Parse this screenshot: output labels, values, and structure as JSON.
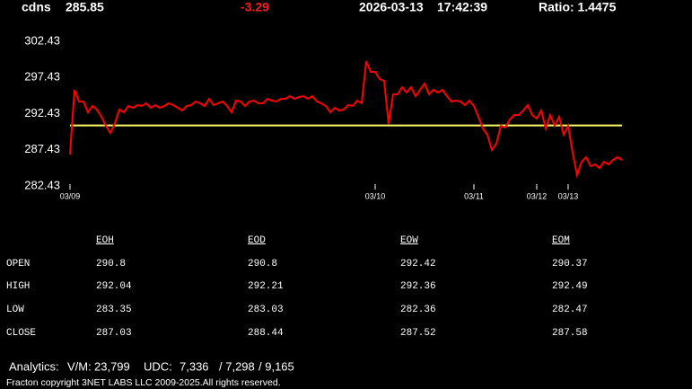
{
  "header": {
    "symbol": "cdns",
    "price": 285.85,
    "change": -3.29,
    "date": "2026-03-13",
    "time": "17:42:39",
    "ratio": "Ratio: 1.4475"
  },
  "chart_data": {
    "type": "line",
    "series": [
      {
        "color": "#ff0000",
        "values": [
          286.78,
          295.72,
          294.11,
          294.11,
          292.62,
          293.49,
          292.99,
          292.0,
          290.75,
          289.76,
          291.13,
          292.99,
          292.62,
          293.49,
          293.24,
          293.61,
          293.49,
          293.86,
          293.24,
          293.61,
          293.24,
          293.49,
          293.86,
          293.61,
          293.24,
          292.86,
          293.49,
          293.61,
          294.11,
          293.86,
          293.49,
          294.48,
          293.61,
          293.86,
          294.11,
          293.49,
          292.62,
          294.23,
          294.11,
          293.49,
          294.11,
          294.23,
          293.86,
          293.86,
          294.48,
          294.23,
          294.11,
          294.48,
          294.48,
          294.85,
          294.48,
          294.73,
          294.85,
          294.48,
          294.85,
          294.11,
          293.86,
          293.49,
          292.62,
          293.24,
          292.86,
          292.99,
          293.61,
          293.49,
          294.23,
          293.86,
          299.7,
          298.21,
          298.21,
          297.21,
          296.96,
          291.0,
          295.1,
          295.1,
          296.09,
          295.35,
          296.09,
          294.85,
          295.72,
          296.59,
          295.1,
          295.72,
          295.35,
          295.72,
          294.85,
          294.11,
          294.23,
          294.11,
          293.61,
          294.23,
          293.49,
          292.0,
          290.38,
          289.51,
          287.4,
          288.27,
          290.75,
          290.5,
          291.62,
          292.24,
          292.24,
          292.86,
          293.61,
          292.24,
          291.75,
          292.86,
          290.38,
          292.24,
          290.75,
          292.0,
          289.51,
          290.75,
          287.03,
          283.92,
          285.78,
          286.41,
          285.16,
          285.41,
          284.91,
          285.78,
          285.41,
          286.03,
          286.41,
          286.03
        ]
      }
    ],
    "reference_line": {
      "value": 290.8,
      "color": "#ffff66"
    },
    "xlim": [
      0,
      123
    ],
    "xticks": [
      {
        "value": 0,
        "label": "03/09"
      },
      {
        "value": 68,
        "label": "03/10"
      },
      {
        "value": 90,
        "label": "03/11"
      },
      {
        "value": 104,
        "label": "03/12"
      },
      {
        "value": 111,
        "label": "03/13"
      }
    ],
    "ylim": [
      282.43,
      302.43
    ],
    "yticks": [
      282.43,
      287.43,
      292.43,
      297.43,
      302.43
    ]
  },
  "table": {
    "columns": [
      "EOH",
      "EOD",
      "EOW",
      "EOM"
    ],
    "rows": [
      {
        "label": "OPEN",
        "values": [
          290.8,
          290.8,
          292.42,
          290.37
        ]
      },
      {
        "label": "HIGH",
        "values": [
          292.04,
          292.21,
          292.36,
          292.49
        ]
      },
      {
        "label": "LOW",
        "values": [
          283.35,
          283.03,
          282.36,
          282.47
        ]
      },
      {
        "label": "CLOSE",
        "values": [
          287.03,
          288.44,
          287.52,
          287.58
        ]
      }
    ]
  },
  "analytics": {
    "label": "Analytics:",
    "vm_label": "V/M:",
    "vm": "23,799",
    "udc_label": "UDC:",
    "udc1": "7,336",
    "udc2": "/ 7,298",
    "udc3": "/ 9,165"
  },
  "footer": "Fracton copyright 3NET LABS LLC 2009-2025.All rights reserved."
}
